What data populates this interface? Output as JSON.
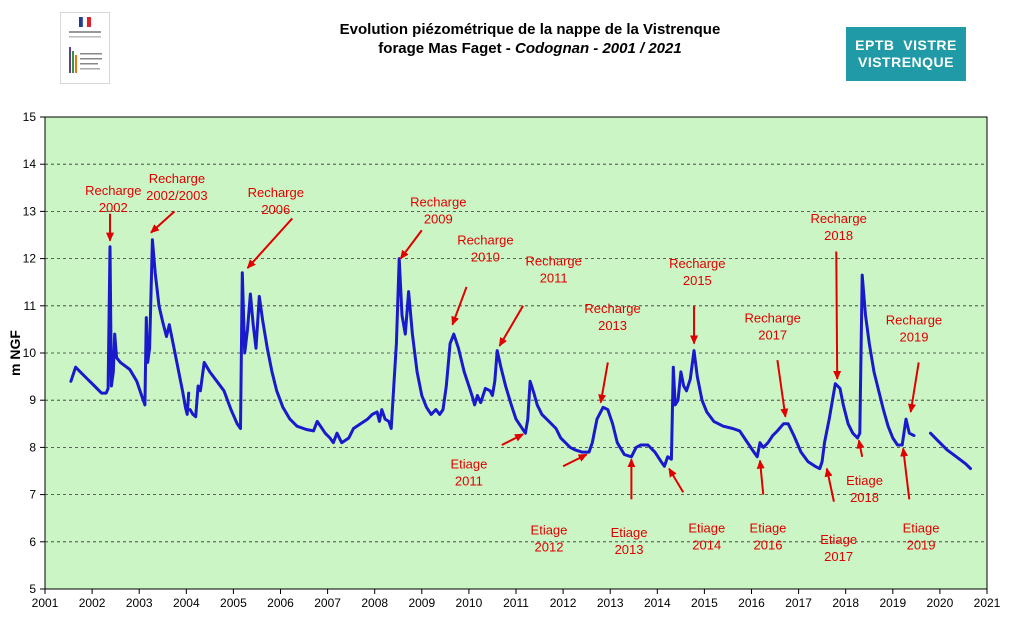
{
  "header": {
    "title_line1": "Evolution piézométrique de la nappe de la Vistrenque",
    "title_line2_a": "forage Mas Faget - ",
    "title_line2_b": "Codognan - 2001 / 2021",
    "badge_line1": "EPTB  VISTRE",
    "badge_line2": "VISTRENQUE",
    "logo_text": "Direction régionale de l'environnement"
  },
  "colors": {
    "plot_bg": "#ccf5c5",
    "series": "#1a1acc",
    "annotation": "#e00000",
    "badge": "#1f9aa6"
  },
  "chart_data": {
    "type": "line",
    "title": "Evolution piézométrique de la nappe de la Vistrenque forage Mas Faget - Codognan - 2001 / 2021",
    "xlabel": "",
    "ylabel": "m NGF",
    "xlim": [
      2001,
      2021
    ],
    "ylim": [
      5,
      15
    ],
    "x_ticks": [
      "2001",
      "2002",
      "2003",
      "2004",
      "2005",
      "2006",
      "2007",
      "2008",
      "2009",
      "2010",
      "2011",
      "2012",
      "2013",
      "2014",
      "2015",
      "2016",
      "2017",
      "2018",
      "2019",
      "2020",
      "2021"
    ],
    "y_ticks": [
      "5",
      "6",
      "7",
      "8",
      "9",
      "10",
      "11",
      "12",
      "13",
      "14",
      "15"
    ],
    "grid": "horizontal dashed",
    "series": [
      {
        "segments": [
          [
            [
              2001.55,
              9.4
            ],
            [
              2001.65,
              9.7
            ],
            [
              2001.75,
              9.6
            ],
            [
              2001.9,
              9.45
            ],
            [
              2002.05,
              9.3
            ],
            [
              2002.2,
              9.15
            ],
            [
              2002.3,
              9.15
            ],
            [
              2002.34,
              9.25
            ],
            [
              2002.38,
              12.25
            ],
            [
              2002.41,
              9.3
            ],
            [
              2002.45,
              9.6
            ],
            [
              2002.48,
              10.4
            ],
            [
              2002.52,
              9.9
            ],
            [
              2002.6,
              9.8
            ],
            [
              2002.8,
              9.65
            ],
            [
              2002.95,
              9.4
            ],
            [
              2003.05,
              9.1
            ],
            [
              2003.12,
              8.9
            ],
            [
              2003.15,
              10.75
            ],
            [
              2003.18,
              9.8
            ],
            [
              2003.22,
              10.1
            ],
            [
              2003.28,
              12.4
            ],
            [
              2003.34,
              11.7
            ],
            [
              2003.42,
              11.0
            ],
            [
              2003.5,
              10.65
            ],
            [
              2003.58,
              10.35
            ],
            [
              2003.64,
              10.6
            ],
            [
              2003.72,
              10.2
            ],
            [
              2003.82,
              9.7
            ],
            [
              2003.92,
              9.2
            ],
            [
              2003.98,
              8.85
            ],
            [
              2004.02,
              8.7
            ],
            [
              2004.05,
              9.15
            ]
          ],
          [
            [
              2004.08,
              8.8
            ],
            [
              2004.14,
              8.7
            ],
            [
              2004.2,
              8.65
            ],
            [
              2004.25,
              9.3
            ],
            [
              2004.3,
              9.2
            ],
            [
              2004.38,
              9.8
            ],
            [
              2004.5,
              9.6
            ],
            [
              2004.65,
              9.4
            ],
            [
              2004.8,
              9.2
            ],
            [
              2004.95,
              8.8
            ],
            [
              2005.08,
              8.5
            ],
            [
              2005.15,
              8.4
            ],
            [
              2005.19,
              11.7
            ],
            [
              2005.24,
              10.0
            ],
            [
              2005.3,
              10.5
            ],
            [
              2005.36,
              11.25
            ],
            [
              2005.42,
              10.6
            ],
            [
              2005.48,
              10.1
            ],
            [
              2005.55,
              11.2
            ],
            [
              2005.62,
              10.7
            ],
            [
              2005.72,
              10.1
            ],
            [
              2005.82,
              9.6
            ],
            [
              2005.92,
              9.2
            ],
            [
              2006.05,
              8.85
            ],
            [
              2006.2,
              8.6
            ],
            [
              2006.35,
              8.45
            ],
            [
              2006.55,
              8.38
            ],
            [
              2006.7,
              8.35
            ],
            [
              2006.78,
              8.55
            ],
            [
              2006.85,
              8.45
            ],
            [
              2006.95,
              8.3
            ],
            [
              2007.05,
              8.2
            ],
            [
              2007.12,
              8.1
            ],
            [
              2007.2,
              8.3
            ],
            [
              2007.3,
              8.1
            ],
            [
              2007.45,
              8.2
            ],
            [
              2007.55,
              8.4
            ],
            [
              2007.7,
              8.5
            ],
            [
              2007.85,
              8.6
            ],
            [
              2007.95,
              8.7
            ],
            [
              2008.05,
              8.75
            ],
            [
              2008.1,
              8.55
            ],
            [
              2008.15,
              8.8
            ],
            [
              2008.22,
              8.6
            ],
            [
              2008.3,
              8.55
            ],
            [
              2008.35,
              8.4
            ],
            [
              2008.4,
              9.2
            ],
            [
              2008.46,
              10.2
            ],
            [
              2008.52,
              12.0
            ],
            [
              2008.58,
              10.8
            ],
            [
              2008.65,
              10.4
            ],
            [
              2008.72,
              11.3
            ],
            [
              2008.8,
              10.4
            ],
            [
              2008.9,
              9.6
            ],
            [
              2009.0,
              9.1
            ],
            [
              2009.1,
              8.85
            ],
            [
              2009.2,
              8.7
            ],
            [
              2009.3,
              8.8
            ],
            [
              2009.38,
              8.7
            ],
            [
              2009.45,
              8.8
            ],
            [
              2009.52,
              9.3
            ],
            [
              2009.6,
              10.2
            ],
            [
              2009.68,
              10.4
            ],
            [
              2009.78,
              10.1
            ],
            [
              2009.9,
              9.6
            ],
            [
              2010.0,
              9.3
            ],
            [
              2010.08,
              9.05
            ],
            [
              2010.12,
              8.9
            ],
            [
              2010.18,
              9.1
            ],
            [
              2010.25,
              8.95
            ],
            [
              2010.35,
              9.25
            ],
            [
              2010.45,
              9.2
            ],
            [
              2010.5,
              9.1
            ],
            [
              2010.55,
              9.4
            ],
            [
              2010.6,
              10.05
            ],
            [
              2010.68,
              9.7
            ],
            [
              2010.78,
              9.3
            ],
            [
              2010.9,
              8.9
            ],
            [
              2011.0,
              8.6
            ],
            [
              2011.1,
              8.45
            ],
            [
              2011.2,
              8.3
            ],
            [
              2011.25,
              8.6
            ],
            [
              2011.3,
              9.4
            ],
            [
              2011.38,
              9.15
            ],
            [
              2011.45,
              8.9
            ],
            [
              2011.55,
              8.7
            ],
            [
              2011.7,
              8.55
            ],
            [
              2011.85,
              8.4
            ],
            [
              2011.95,
              8.2
            ],
            [
              2012.05,
              8.1
            ],
            [
              2012.15,
              8.0
            ],
            [
              2012.25,
              7.95
            ],
            [
              2012.4,
              7.9
            ],
            [
              2012.55,
              7.9
            ],
            [
              2012.62,
              8.1
            ],
            [
              2012.72,
              8.6
            ],
            [
              2012.85,
              8.85
            ],
            [
              2012.95,
              8.8
            ],
            [
              2013.05,
              8.5
            ],
            [
              2013.15,
              8.1
            ],
            [
              2013.3,
              7.85
            ],
            [
              2013.45,
              7.8
            ],
            [
              2013.55,
              8.0
            ],
            [
              2013.65,
              8.05
            ],
            [
              2013.8,
              8.05
            ],
            [
              2013.95,
              7.9
            ],
            [
              2014.08,
              7.7
            ],
            [
              2014.15,
              7.6
            ],
            [
              2014.22,
              7.8
            ],
            [
              2014.3,
              7.75
            ],
            [
              2014.34,
              9.7
            ],
            [
              2014.38,
              8.9
            ],
            [
              2014.44,
              9.0
            ],
            [
              2014.5,
              9.6
            ],
            [
              2014.56,
              9.3
            ],
            [
              2014.62,
              9.2
            ],
            [
              2014.7,
              9.45
            ],
            [
              2014.78,
              10.05
            ],
            [
              2014.85,
              9.5
            ],
            [
              2014.95,
              9.0
            ],
            [
              2015.05,
              8.75
            ],
            [
              2015.2,
              8.55
            ],
            [
              2015.4,
              8.45
            ],
            [
              2015.6,
              8.4
            ],
            [
              2015.75,
              8.35
            ],
            [
              2015.85,
              8.2
            ],
            [
              2015.95,
              8.05
            ],
            [
              2016.05,
              7.9
            ],
            [
              2016.12,
              7.8
            ],
            [
              2016.18,
              8.1
            ],
            [
              2016.25,
              8.0
            ],
            [
              2016.35,
              8.1
            ],
            [
              2016.45,
              8.25
            ],
            [
              2016.55,
              8.35
            ],
            [
              2016.68,
              8.5
            ],
            [
              2016.78,
              8.5
            ],
            [
              2016.9,
              8.25
            ],
            [
              2017.05,
              7.9
            ],
            [
              2017.2,
              7.7
            ],
            [
              2017.35,
              7.6
            ],
            [
              2017.45,
              7.55
            ],
            [
              2017.5,
              7.7
            ],
            [
              2017.55,
              8.1
            ],
            [
              2017.65,
              8.6
            ],
            [
              2017.78,
              9.35
            ],
            [
              2017.88,
              9.25
            ],
            [
              2017.95,
              8.9
            ],
            [
              2018.05,
              8.5
            ],
            [
              2018.15,
              8.3
            ],
            [
              2018.25,
              8.2
            ],
            [
              2018.3,
              8.3
            ],
            [
              2018.35,
              11.65
            ],
            [
              2018.42,
              10.8
            ],
            [
              2018.5,
              10.2
            ],
            [
              2018.6,
              9.6
            ],
            [
              2018.7,
              9.2
            ],
            [
              2018.8,
              8.8
            ],
            [
              2018.9,
              8.45
            ],
            [
              2019.0,
              8.2
            ],
            [
              2019.1,
              8.05
            ],
            [
              2019.2,
              8.05
            ],
            [
              2019.28,
              8.6
            ],
            [
              2019.35,
              8.3
            ],
            [
              2019.45,
              8.25
            ]
          ],
          [
            [
              2019.8,
              8.3
            ],
            [
              2019.95,
              8.15
            ],
            [
              2020.15,
              7.95
            ],
            [
              2020.35,
              7.8
            ],
            [
              2020.55,
              7.65
            ],
            [
              2020.65,
              7.55
            ]
          ]
        ]
      }
    ],
    "annotations": [
      {
        "lines": [
          "Recharge",
          "2002"
        ],
        "tx": 2002.45,
        "ty": 13.35,
        "ax1": 2002.38,
        "ay1": 12.95,
        "ax2": 2002.38,
        "ay2": 12.38
      },
      {
        "lines": [
          "Recharge",
          "2002/2003"
        ],
        "tx": 2003.8,
        "ty": 13.6,
        "ax1": 2003.75,
        "ay1": 13.0,
        "ax2": 2003.25,
        "ay2": 12.55
      },
      {
        "lines": [
          "Recharge",
          "2006"
        ],
        "tx": 5.9,
        "ty": 13.3,
        "ax1": 2006.25,
        "ay1": 12.85,
        "ax2": 2005.3,
        "ay2": 11.8
      },
      {
        "lines": [
          "Recharge",
          "2009"
        ],
        "tx": 2009.35,
        "ty": 13.1,
        "ax1": 2009.0,
        "ay1": 12.6,
        "ax2": 2008.55,
        "ay2": 12.0
      },
      {
        "lines": [
          "Recharge",
          "2010"
        ],
        "tx": 2010.35,
        "ty": 12.3,
        "ax1": 2009.95,
        "ay1": 11.4,
        "ax2": 2009.65,
        "ay2": 10.6
      },
      {
        "lines": [
          "Recharge",
          "2011"
        ],
        "tx": 2011.8,
        "ty": 11.85,
        "ax1": 2011.15,
        "ay1": 11.0,
        "ax2": 2010.65,
        "ay2": 10.15
      },
      {
        "lines": [
          "Recharge",
          "2013"
        ],
        "tx": 2013.05,
        "ty": 10.85,
        "ax1": 2012.95,
        "ay1": 9.8,
        "ax2": 2012.8,
        "ay2": 8.95
      },
      {
        "lines": [
          "Recharge",
          "2015"
        ],
        "tx": 2014.85,
        "ty": 11.8,
        "ax1": 2014.78,
        "ay1": 11.0,
        "ax2": 2014.78,
        "ay2": 10.2
      },
      {
        "lines": [
          "Recharge",
          "2017"
        ],
        "tx": 2016.45,
        "ty": 10.65,
        "ax1": 2016.55,
        "ay1": 9.85,
        "ax2": 2016.72,
        "ay2": 8.65
      },
      {
        "lines": [
          "Recharge",
          "2018"
        ],
        "tx": 2017.85,
        "ty": 12.75,
        "ax1": 2017.8,
        "ay1": 12.15,
        "ax2": 2017.82,
        "ay2": 9.45
      },
      {
        "lines": [
          "Recharge",
          "2019"
        ],
        "tx": 2019.45,
        "ty": 10.6,
        "ax1": 2019.55,
        "ay1": 9.8,
        "ax2": 2019.38,
        "ay2": 8.75
      },
      {
        "lines": [
          "Etiage",
          "2011"
        ],
        "tx": 2010.0,
        "ty": 7.55,
        "ax1": 2010.7,
        "ay1": 8.05,
        "ax2": 2011.15,
        "ay2": 8.28
      },
      {
        "lines": [
          "Etiage",
          "2012"
        ],
        "tx": 2011.7,
        "ty": 6.15,
        "ax1": 2012.0,
        "ay1": 7.6,
        "ax2": 2012.5,
        "ay2": 7.85
      },
      {
        "lines": [
          "Etiage",
          "2013"
        ],
        "tx": 2013.4,
        "ty": 6.1,
        "ax1": 2013.45,
        "ay1": 6.9,
        "ax2": 2013.45,
        "ay2": 7.75
      },
      {
        "lines": [
          "Etiage",
          "2014"
        ],
        "tx": 2015.05,
        "ty": 6.2,
        "ax1": 2014.55,
        "ay1": 7.05,
        "ax2": 2014.25,
        "ay2": 7.55
      },
      {
        "lines": [
          "Etiage",
          "2016"
        ],
        "tx": 2016.35,
        "ty": 6.2,
        "ax1": 2016.25,
        "ay1": 7.0,
        "ax2": 2016.18,
        "ay2": 7.72
      },
      {
        "lines": [
          "Etiage",
          "2017"
        ],
        "tx": 2017.85,
        "ty": 5.95,
        "ax1": 2017.75,
        "ay1": 6.85,
        "ax2": 2017.6,
        "ay2": 7.55
      },
      {
        "lines": [
          "Etiage",
          "2018"
        ],
        "tx": 2018.4,
        "ty": 7.2,
        "ax1": 2018.35,
        "ay1": 7.8,
        "ax2": 2018.28,
        "ay2": 8.15
      },
      {
        "lines": [
          "Etiage",
          "2019"
        ],
        "tx": 2019.6,
        "ty": 6.2,
        "ax1": 2019.35,
        "ay1": 6.9,
        "ax2": 2019.22,
        "ay2": 7.98
      }
    ]
  }
}
